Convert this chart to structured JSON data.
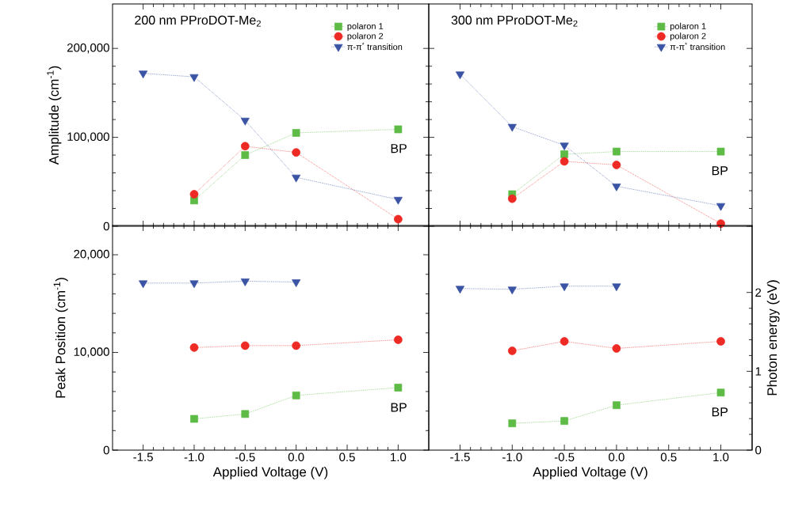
{
  "chart_data": [
    {
      "type": "line",
      "title": "200 nm PProDOT-Me$_{2}$",
      "ylabel": "Amplitude (cm$^{-1}$)",
      "x": [
        -1.5,
        -1.0,
        -0.5,
        0.0,
        1.0
      ],
      "series": [
        {
          "name": "polaron 1",
          "color": "#5dbb46",
          "marker": "square",
          "values": [
            null,
            29000,
            80000,
            105000,
            109000
          ]
        },
        {
          "name": "polaron 2",
          "color": "#ee2a24",
          "marker": "circle",
          "values": [
            null,
            36000,
            90000,
            83000,
            8000
          ]
        },
        {
          "name": "π-π$^{*}$ transition",
          "color": "#3a53a4",
          "marker": "triangle",
          "values": [
            172000,
            168000,
            119000,
            55000,
            30000
          ]
        }
      ],
      "xlim": [
        -1.8,
        1.3
      ],
      "ylim": [
        0,
        250000
      ],
      "xticks": [
        {
          "value": -1.5,
          "label": null
        },
        {
          "value": -1.0,
          "label": null
        },
        {
          "value": -0.5,
          "label": null
        },
        {
          "value": 0.0,
          "label": null
        },
        {
          "value": 0.5,
          "label": null
        },
        {
          "value": 1.0,
          "label": null
        }
      ],
      "yticks": [
        0,
        {
          "value": 100000,
          "label": "100,000"
        },
        {
          "value": 200000,
          "label": "200,000"
        }
      ],
      "tick_labels": "y",
      "legend": "top right",
      "line_style": "dotted",
      "annotations": [
        "BP"
      ]
    },
    {
      "type": "line",
      "title": "300 nm PProDOT-Me$_{2}$",
      "x": [
        -1.5,
        -1.0,
        -0.5,
        0.0,
        1.0
      ],
      "series": [
        {
          "name": "polaron 1",
          "color": "#5dbb46",
          "marker": "square",
          "values": [
            null,
            36000,
            81000,
            84000,
            84000
          ]
        },
        {
          "name": "polaron 2",
          "color": "#ee2a24",
          "marker": "circle",
          "values": [
            null,
            31000,
            73000,
            69000,
            3000
          ]
        },
        {
          "name": "π-π$^{*}$ transition",
          "color": "#3a53a4",
          "marker": "triangle",
          "values": [
            171000,
            112000,
            91000,
            45000,
            23000
          ]
        }
      ],
      "xlim": [
        -1.8,
        1.3
      ],
      "ylim": [
        0,
        250000
      ],
      "xticks": [
        {
          "value": -1.5,
          "label": null
        },
        {
          "value": -1.0,
          "label": null
        },
        {
          "value": -0.5,
          "label": null
        },
        {
          "value": 0.0,
          "label": null
        },
        {
          "value": 0.5,
          "label": null
        },
        {
          "value": 1.0,
          "label": null
        }
      ],
      "yticks": [
        {
          "value": 0,
          "label": null
        },
        {
          "value": 100000,
          "label": null
        },
        {
          "value": 200000,
          "label": null
        }
      ],
      "tick_labels": false,
      "legend": "top right",
      "line_style": "dotted",
      "annotations": [
        "BP"
      ]
    },
    {
      "type": "line",
      "xlabel": "Applied Voltage (V)",
      "ylabel": "Peak Position (cm$^{-1}$)",
      "x": [
        -1.5,
        -1.0,
        -0.5,
        0.0,
        1.0
      ],
      "series": [
        {
          "color": "#5dbb46",
          "marker": "square",
          "values": [
            null,
            3200,
            3700,
            5600,
            6400
          ]
        },
        {
          "color": "#ee2a24",
          "marker": "circle",
          "values": [
            null,
            10500,
            10700,
            10700,
            11300
          ]
        },
        {
          "color": "#3a53a4",
          "marker": "triangle",
          "values": [
            17100,
            17100,
            17300,
            17200,
            null
          ]
        }
      ],
      "xlim": [
        -1.8,
        1.3
      ],
      "ylim": [
        0,
        23000
      ],
      "xticks": [
        {
          "value": -1.5,
          "label": "-1.5"
        },
        {
          "value": -1.0,
          "label": "-1.0"
        },
        {
          "value": -0.5,
          "label": "-0.5"
        },
        {
          "value": 0.0,
          "label": "0.0"
        },
        {
          "value": 0.5,
          "label": "0.5"
        },
        {
          "value": 1.0,
          "label": "1.0"
        }
      ],
      "yticks": [
        0,
        {
          "value": 10000,
          "label": "10,000"
        },
        {
          "value": 20000,
          "label": "20,000"
        }
      ],
      "line_style": "dotted",
      "annotations": [
        "BP"
      ]
    },
    {
      "type": "line",
      "xlabel": "Applied Voltage (V)",
      "y2label": "Photon energy (eV)",
      "x": [
        -1.5,
        -1.0,
        -0.5,
        0.0,
        1.0
      ],
      "series": [
        {
          "color": "#5dbb46",
          "marker": "square",
          "axis": "y2",
          "values": [
            null,
            0.34,
            0.37,
            0.57,
            0.73
          ]
        },
        {
          "color": "#ee2a24",
          "marker": "circle",
          "axis": "y2",
          "values": [
            null,
            1.26,
            1.38,
            1.29,
            1.38
          ]
        },
        {
          "color": "#3a53a4",
          "marker": "triangle",
          "axis": "y2",
          "values": [
            2.05,
            2.04,
            2.08,
            2.08,
            null
          ]
        }
      ],
      "xlim": [
        -1.8,
        1.3
      ],
      "y2lim": [
        0,
        2.85
      ],
      "xticks": [
        {
          "value": -1.5,
          "label": "-1.5"
        },
        {
          "value": -1.0,
          "label": "-1.0"
        },
        {
          "value": -0.5,
          "label": "-0.5"
        },
        {
          "value": 0.0,
          "label": "0.0"
        },
        {
          "value": 0.5,
          "label": "0.5"
        },
        {
          "value": 1.0,
          "label": "1.0"
        }
      ],
      "y2ticks": [
        0,
        1,
        2
      ],
      "line_style": "dotted",
      "annotations": [
        "BP"
      ]
    }
  ]
}
